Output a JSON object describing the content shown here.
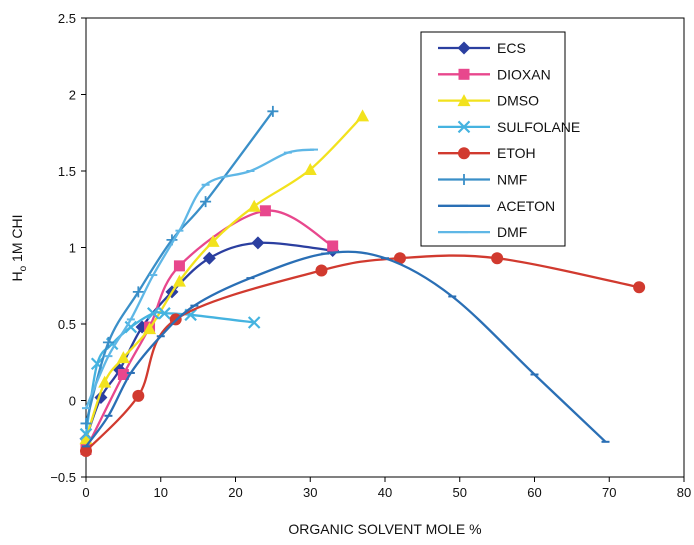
{
  "chart_data": {
    "type": "line",
    "title": "",
    "xlabel": "ORGANIC SOLVENT MOLE %",
    "ylabel_main": "H",
    "ylabel_sub": "o",
    "ylabel_rest": " 1M CHI",
    "xlim": [
      0,
      80
    ],
    "ylim": [
      -0.5,
      2.5
    ],
    "x_ticks": [
      "0",
      "10",
      "20",
      "30",
      "40",
      "50",
      "60",
      "70",
      "80"
    ],
    "y_ticks": [
      "−0.5",
      "0",
      "0.5",
      "1",
      "1.5",
      "2",
      "2.5"
    ],
    "grid": false,
    "legend_position": "top-right",
    "series": [
      {
        "name": "ECS",
        "color": "#2b3fa0",
        "marker": "diamond",
        "points": [
          [
            0,
            -0.25
          ],
          [
            2,
            0.02
          ],
          [
            4.5,
            0.2
          ],
          [
            7.5,
            0.48
          ],
          [
            11.5,
            0.71
          ],
          [
            16.5,
            0.93
          ],
          [
            23,
            1.03
          ],
          [
            33,
            0.98
          ]
        ]
      },
      {
        "name": "DIOXAN",
        "color": "#e8478d",
        "marker": "square",
        "points": [
          [
            0,
            -0.32
          ],
          [
            5,
            0.17
          ],
          [
            8.5,
            0.48
          ],
          [
            12.5,
            0.88
          ],
          [
            24,
            1.24
          ],
          [
            33,
            1.01
          ]
        ]
      },
      {
        "name": "DMSO",
        "color": "#f2e21d",
        "marker": "triangle",
        "points": [
          [
            0,
            -0.25
          ],
          [
            2.5,
            0.12
          ],
          [
            5,
            0.28
          ],
          [
            8.5,
            0.47
          ],
          [
            12.5,
            0.78
          ],
          [
            17,
            1.04
          ],
          [
            22.5,
            1.27
          ],
          [
            30,
            1.51
          ],
          [
            37,
            1.86
          ]
        ]
      },
      {
        "name": "SULFOLANE",
        "color": "#45b3e0",
        "marker": "x",
        "points": [
          [
            0,
            -0.22
          ],
          [
            1.5,
            0.24
          ],
          [
            3.5,
            0.37
          ],
          [
            6,
            0.48
          ],
          [
            9,
            0.57
          ],
          [
            10.5,
            0.57
          ],
          [
            14,
            0.56
          ],
          [
            22.5,
            0.51
          ]
        ]
      },
      {
        "name": "ETOH",
        "color": "#d13a2f",
        "marker": "circle",
        "points": [
          [
            0,
            -0.33
          ],
          [
            7,
            0.03
          ],
          [
            12,
            0.53
          ],
          [
            31.5,
            0.85
          ],
          [
            42,
            0.93
          ],
          [
            55,
            0.93
          ],
          [
            74,
            0.74
          ]
        ]
      },
      {
        "name": "NMF",
        "color": "#3a8fc8",
        "marker": "plus",
        "points": [
          [
            0,
            -0.15
          ],
          [
            3,
            0.38
          ],
          [
            7,
            0.71
          ],
          [
            11.5,
            1.05
          ],
          [
            16,
            1.3
          ],
          [
            25,
            1.89
          ]
        ]
      },
      {
        "name": "ACETON",
        "color": "#2a6fb5",
        "marker": "dash",
        "points": [
          [
            0,
            -0.3
          ],
          [
            3,
            -0.1
          ],
          [
            6,
            0.18
          ],
          [
            10,
            0.42
          ],
          [
            14.5,
            0.62
          ],
          [
            22,
            0.8
          ],
          [
            32,
            0.96
          ],
          [
            40,
            0.93
          ],
          [
            49,
            0.68
          ],
          [
            60,
            0.17
          ],
          [
            69.5,
            -0.27
          ]
        ]
      },
      {
        "name": "DMF",
        "color": "#5fb7e6",
        "marker": "dash",
        "points": [
          [
            0,
            -0.05
          ],
          [
            3,
            0.29
          ],
          [
            6,
            0.53
          ],
          [
            9,
            0.82
          ],
          [
            12.5,
            1.11
          ],
          [
            16,
            1.41
          ],
          [
            22,
            1.5
          ],
          [
            27,
            1.62
          ],
          [
            30.5,
            1.64
          ]
        ]
      }
    ]
  }
}
